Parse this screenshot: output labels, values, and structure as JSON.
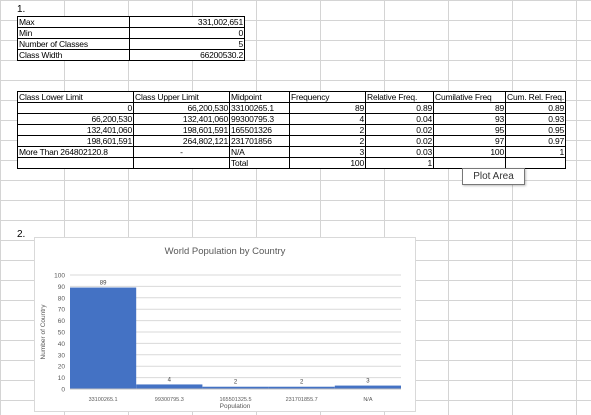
{
  "section_labels": {
    "first": "1.",
    "second": "2."
  },
  "summary": [
    {
      "label": "Max",
      "value": "331,002,651"
    },
    {
      "label": "Min",
      "value": "0"
    },
    {
      "label": "Number of Classes",
      "value": "5"
    },
    {
      "label": "Class Width",
      "value": "66200530.2"
    }
  ],
  "freq_table": {
    "headers": [
      "Class Lower Limit",
      "Class Upper Limit",
      "Midpoint",
      "Frequency",
      "Relative Freq.",
      "Cumilative Freq",
      "Cum. Rel. Freq."
    ],
    "rows": [
      [
        "0",
        "66,200,530",
        "33100265.1",
        "89",
        "0.89",
        "89",
        "0.89"
      ],
      [
        "66,200,530",
        "132,401,060",
        "99300795.3",
        "4",
        "0.04",
        "93",
        "0.93"
      ],
      [
        "132,401,060",
        "198,601,591",
        "165501326",
        "2",
        "0.02",
        "95",
        "0.95"
      ],
      [
        "198,601,591",
        "264,802,121",
        "231701856",
        "2",
        "0.02",
        "97",
        "0.97"
      ],
      [
        "More Than 264802120.8",
        "-",
        "N/A",
        "3",
        "0.03",
        "100",
        "1"
      ]
    ],
    "total_row": [
      "",
      "",
      "Total",
      "100",
      "1",
      "",
      ""
    ]
  },
  "tooltip": "Plot Area",
  "chart_data": {
    "type": "bar",
    "title": "World Population by Country",
    "xlabel": "Population",
    "ylabel": "Number of Country",
    "categories": [
      "33100265.1",
      "99300795.3",
      "165501325.5",
      "231701855.7",
      "N/A"
    ],
    "values": [
      89,
      4,
      2,
      2,
      3
    ],
    "ylim": [
      0,
      100
    ],
    "yticks": [
      0,
      10,
      20,
      30,
      40,
      50,
      60,
      70,
      80,
      90,
      100
    ],
    "grid": true,
    "bar_color": "#4472c4"
  }
}
